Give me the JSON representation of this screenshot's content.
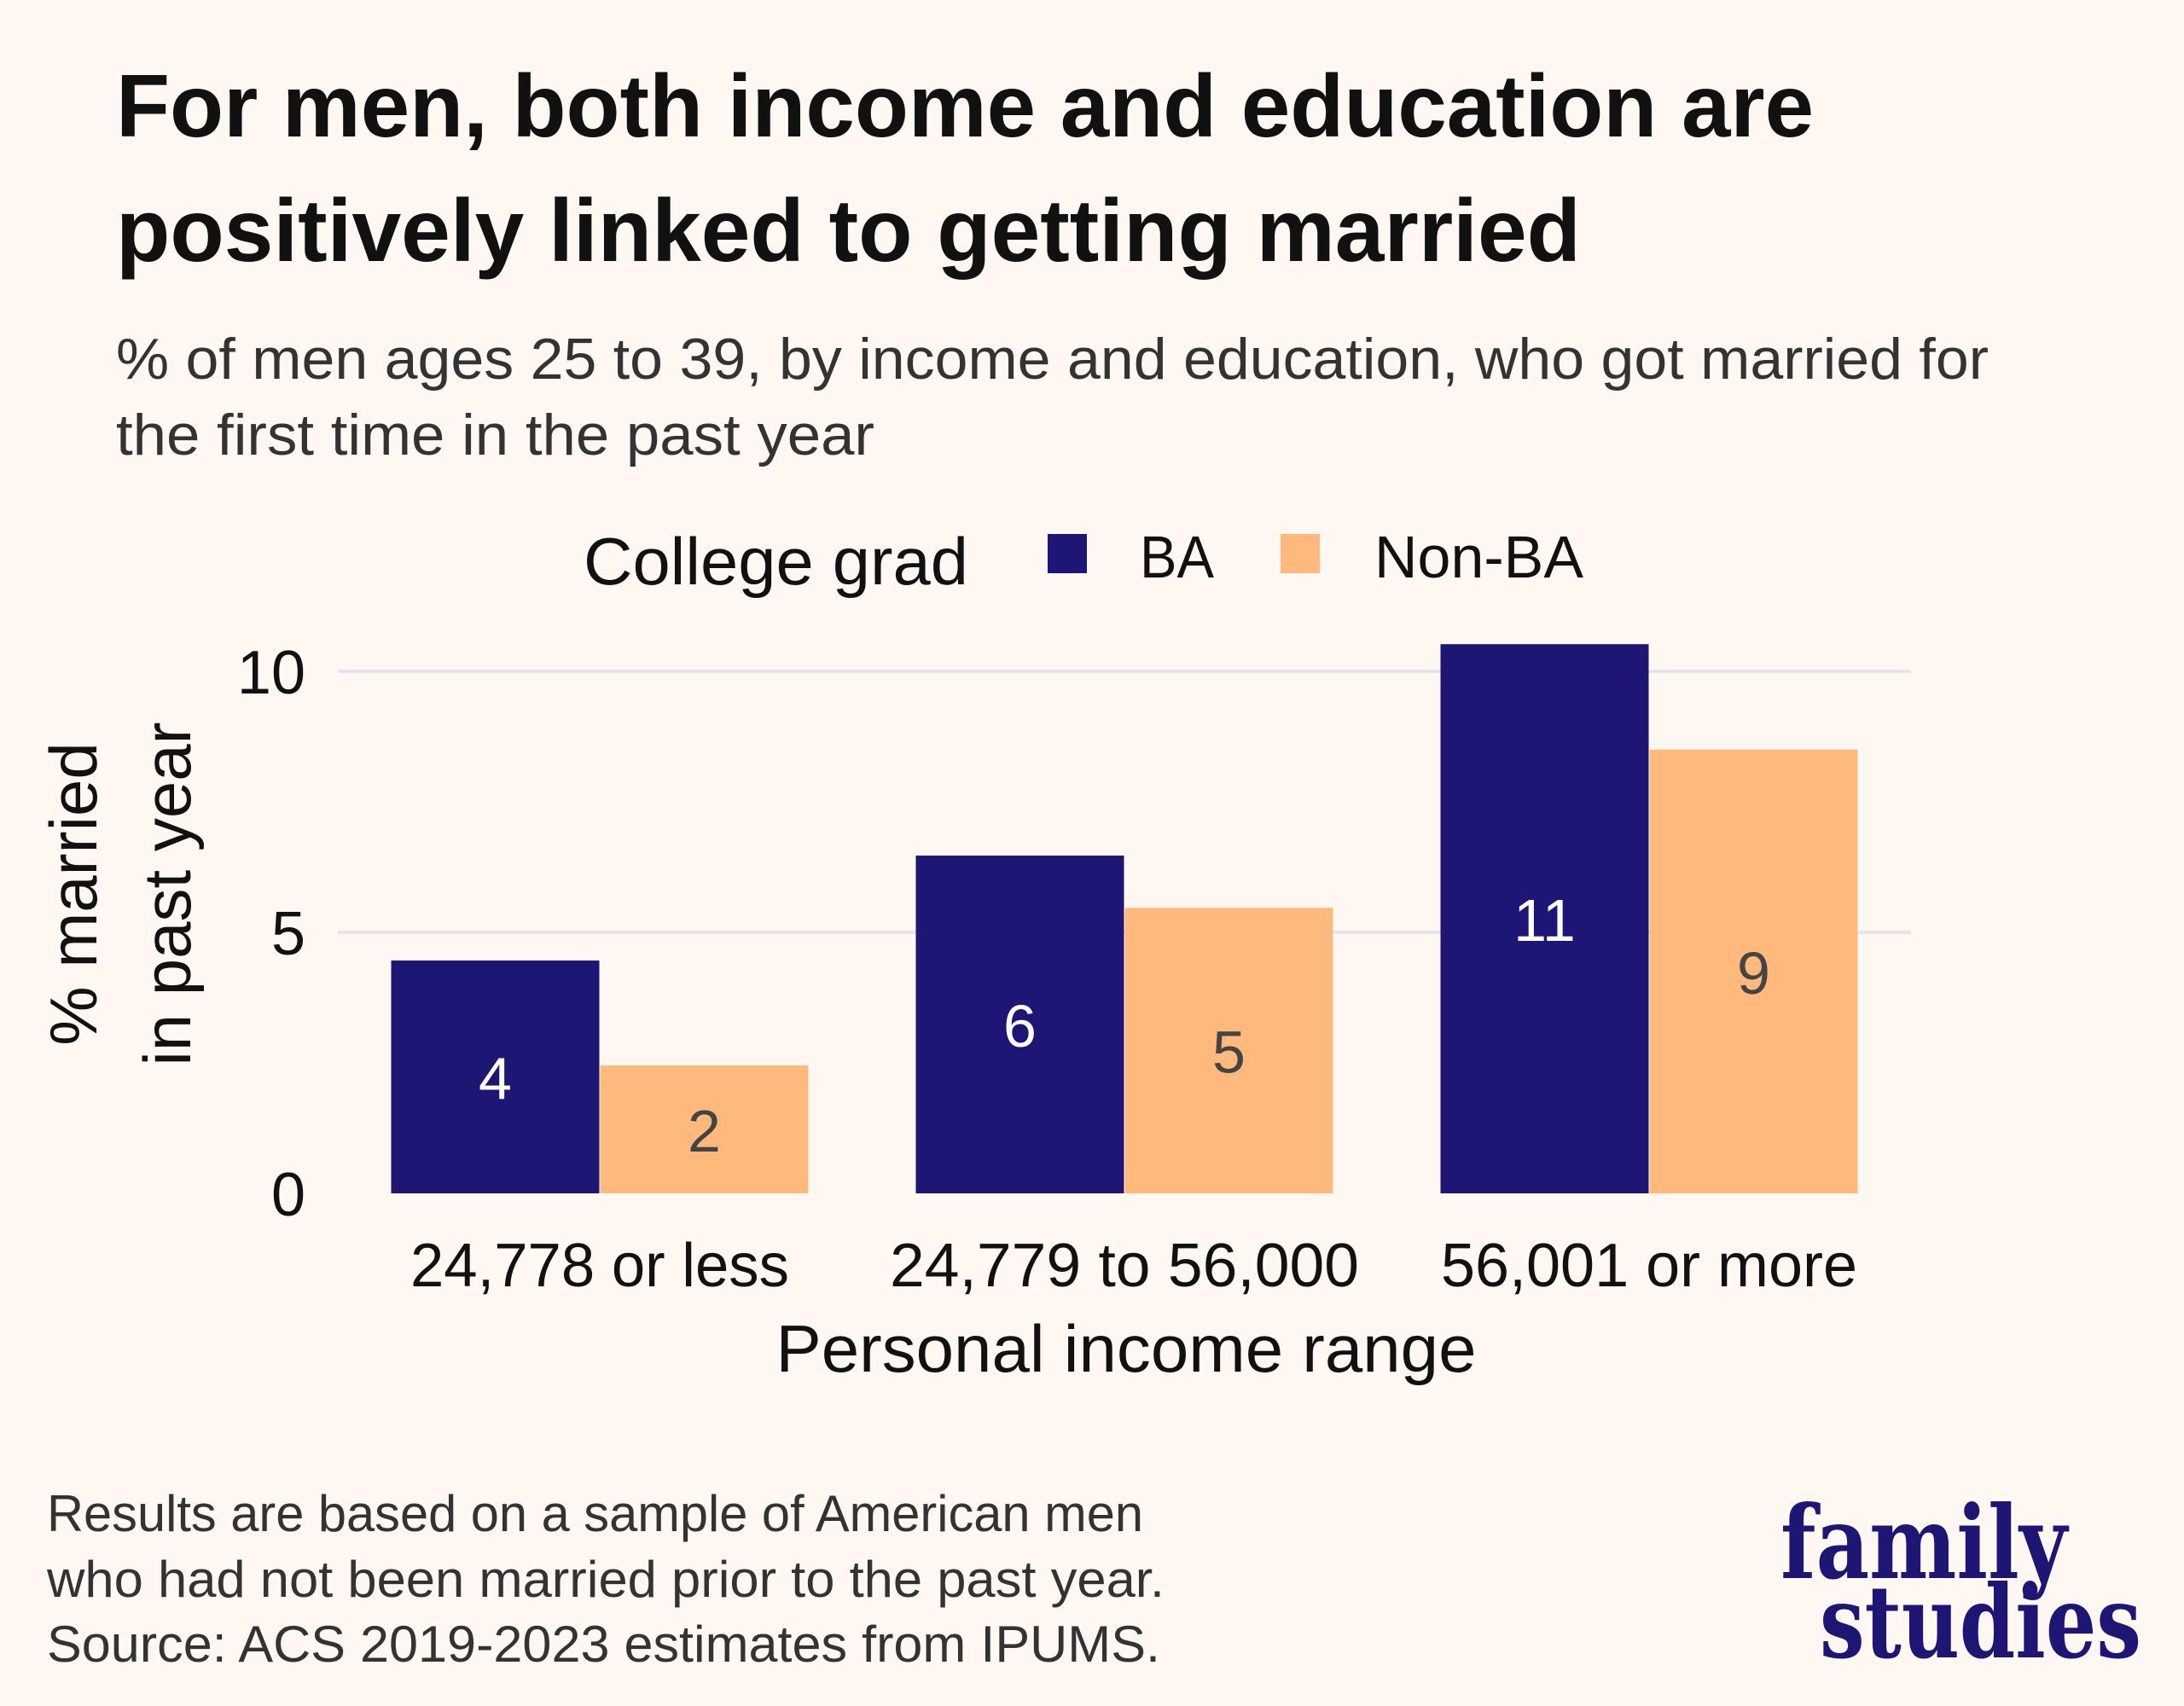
{
  "title": {
    "line1": "For men, both income and education are",
    "line2": "positively linked to getting married"
  },
  "subtitle": {
    "line1": "% of men ages 25 to 39, by income and education, who got married for",
    "line2": "the first time in the past year"
  },
  "footer": {
    "line1": "Results are based on a sample of American men",
    "line2": "who had not been married prior to the past year.",
    "line3": "Source: ACS 2019-2023 estimates from IPUMS."
  },
  "logo": {
    "line1": "family",
    "line2": "studies"
  },
  "colors": {
    "background": "#FEF7F2",
    "ba": "#1E1675",
    "non_ba": "#FFB97C",
    "grid": "#E4E4EB",
    "ba_label": "#FFFFFF",
    "non_ba_label": "#444444",
    "logo": "#1E1675"
  },
  "chart_data": {
    "type": "bar",
    "title": "For men, both income and education are positively linked to getting married",
    "subtitle": "% of men ages 25 to 39, by income and education, who got married for the first time in the past year",
    "xlabel": "Personal income range",
    "ylabel_lines": [
      "% married",
      "in past year"
    ],
    "categories": [
      "24,778 or less",
      "24,779 to 56,000",
      "56,001 or more"
    ],
    "legend": {
      "title": "College grad",
      "position": "top",
      "entries": [
        "BA",
        "Non-BA"
      ]
    },
    "series": [
      {
        "name": "BA",
        "values": [
          4.46,
          6.47,
          10.52
        ],
        "labels": [
          "4",
          "6",
          "11"
        ]
      },
      {
        "name": "Non-BA",
        "values": [
          2.45,
          5.47,
          8.5
        ],
        "labels": [
          "2",
          "5",
          "9"
        ]
      }
    ],
    "ylim": [
      0,
      11
    ],
    "yticks": [
      0,
      5,
      10
    ],
    "ytick_labels": [
      "0",
      "5",
      "10"
    ],
    "grid": "horizontal major lines"
  }
}
